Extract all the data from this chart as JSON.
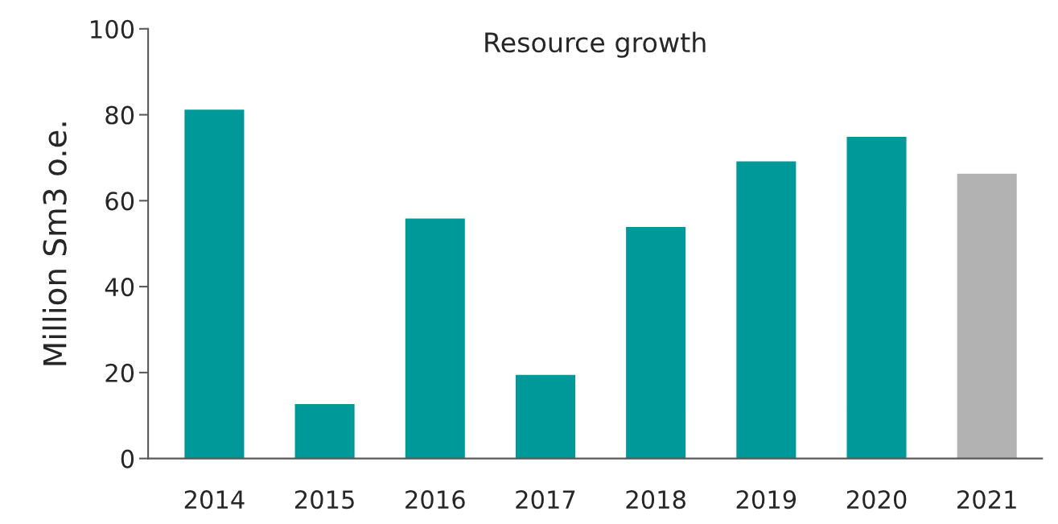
{
  "chart_data": {
    "type": "bar",
    "title": "Resource growth",
    "ylabel": "Million Sm3 o.e.",
    "categories": [
      "2014",
      "2015",
      "2016",
      "2017",
      "2018",
      "2019",
      "2020",
      "2021"
    ],
    "values": [
      81.3,
      12.8,
      56,
      19.6,
      54,
      69.3,
      75,
      66.4
    ],
    "colors": [
      "#009999",
      "#009999",
      "#009999",
      "#009999",
      "#009999",
      "#009999",
      "#009999",
      "#b2b2b2"
    ],
    "ylim": [
      0,
      100
    ],
    "yticks": [
      0,
      20,
      40,
      60,
      80,
      100
    ],
    "grid": false
  }
}
